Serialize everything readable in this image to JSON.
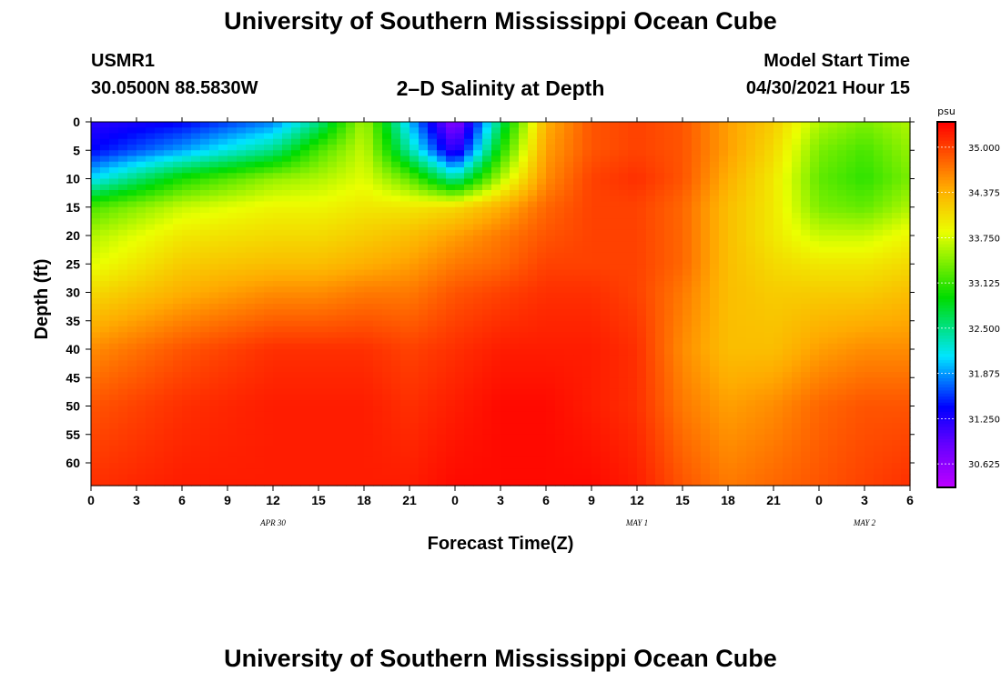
{
  "header": {
    "title": "University of Southern Mississippi Ocean Cube",
    "station_id": "USMR1",
    "coordinates": "30.0500N  88.5830W",
    "subtitle": "2–D Salinity at Depth",
    "model_start_label": "Model Start Time",
    "model_start_value": "04/30/2021 Hour 15"
  },
  "footer": {
    "title": "University of Southern Mississippi Ocean Cube"
  },
  "chart_data": {
    "type": "heatmap",
    "title": "2–D Salinity at Depth",
    "xlabel": "Forecast Time(Z)",
    "ylabel": "Depth (ft)",
    "x_ticks": [
      "0",
      "3",
      "6",
      "9",
      "12",
      "15",
      "18",
      "21",
      "0",
      "3",
      "6",
      "9",
      "12",
      "15",
      "18",
      "21",
      "0",
      "3",
      "6"
    ],
    "x_date_labels": [
      {
        "label": "APR  30",
        "tick_index": 4
      },
      {
        "label": "MAY  1",
        "tick_index": 12
      },
      {
        "label": "MAY  2",
        "tick_index": 17
      }
    ],
    "x_range_hours": [
      0,
      54
    ],
    "y_ticks": [
      0,
      5,
      10,
      15,
      20,
      25,
      30,
      35,
      40,
      45,
      50,
      55,
      60
    ],
    "y_range_ft": [
      0,
      64
    ],
    "y_inverted": true,
    "colorbar": {
      "unit": "psu",
      "ticks": [
        "35.000",
        "34.375",
        "33.750",
        "33.125",
        "32.500",
        "31.875",
        "31.250",
        "30.625"
      ],
      "range": [
        30.3,
        35.35
      ]
    },
    "grid_depths_ft": [
      0,
      5,
      10,
      15,
      20,
      25,
      30,
      40,
      50,
      64
    ],
    "grid_hours": [
      0,
      6,
      12,
      15,
      18,
      21,
      24,
      27,
      30,
      33,
      36,
      39,
      42,
      45,
      48,
      51,
      54
    ],
    "salinity_psu": [
      [
        31.2,
        31.4,
        31.8,
        32.5,
        33.6,
        32.0,
        30.6,
        32.6,
        34.4,
        34.9,
        35.0,
        34.9,
        34.5,
        34.2,
        33.6,
        33.4,
        33.6
      ],
      [
        31.4,
        31.9,
        32.5,
        33.2,
        33.7,
        32.4,
        31.1,
        33.0,
        34.5,
        34.9,
        35.0,
        34.9,
        34.5,
        34.1,
        33.4,
        33.2,
        33.5
      ],
      [
        32.1,
        33.0,
        33.5,
        33.6,
        33.8,
        33.3,
        32.4,
        33.6,
        34.6,
        35.0,
        35.1,
        34.9,
        34.4,
        34.0,
        33.3,
        33.1,
        33.4
      ],
      [
        33.2,
        33.7,
        33.9,
        33.9,
        34.0,
        34.0,
        34.1,
        34.4,
        34.8,
        35.0,
        35.0,
        34.8,
        34.3,
        34.0,
        33.4,
        33.3,
        33.6
      ],
      [
        33.6,
        34.0,
        34.1,
        34.1,
        34.2,
        34.3,
        34.5,
        34.7,
        34.9,
        35.0,
        35.0,
        34.8,
        34.3,
        34.0,
        33.7,
        33.7,
        33.9
      ],
      [
        33.8,
        34.2,
        34.3,
        34.3,
        34.4,
        34.5,
        34.7,
        34.8,
        35.0,
        35.0,
        35.0,
        34.8,
        34.3,
        34.1,
        34.0,
        34.0,
        34.1
      ],
      [
        34.1,
        34.4,
        34.6,
        34.6,
        34.7,
        34.7,
        34.9,
        35.0,
        35.1,
        35.1,
        35.0,
        34.7,
        34.3,
        34.2,
        34.2,
        34.2,
        34.3
      ],
      [
        34.6,
        34.9,
        35.1,
        35.1,
        35.1,
        35.0,
        35.1,
        35.2,
        35.2,
        35.2,
        35.1,
        34.6,
        34.3,
        34.3,
        34.5,
        34.6,
        34.6
      ],
      [
        34.9,
        35.1,
        35.2,
        35.2,
        35.2,
        35.1,
        35.2,
        35.3,
        35.3,
        35.2,
        35.1,
        34.7,
        34.5,
        34.6,
        34.8,
        34.9,
        34.9
      ],
      [
        35.1,
        35.2,
        35.2,
        35.2,
        35.2,
        35.2,
        35.3,
        35.3,
        35.3,
        35.3,
        35.2,
        34.9,
        34.7,
        34.8,
        34.9,
        35.0,
        35.1
      ]
    ]
  }
}
